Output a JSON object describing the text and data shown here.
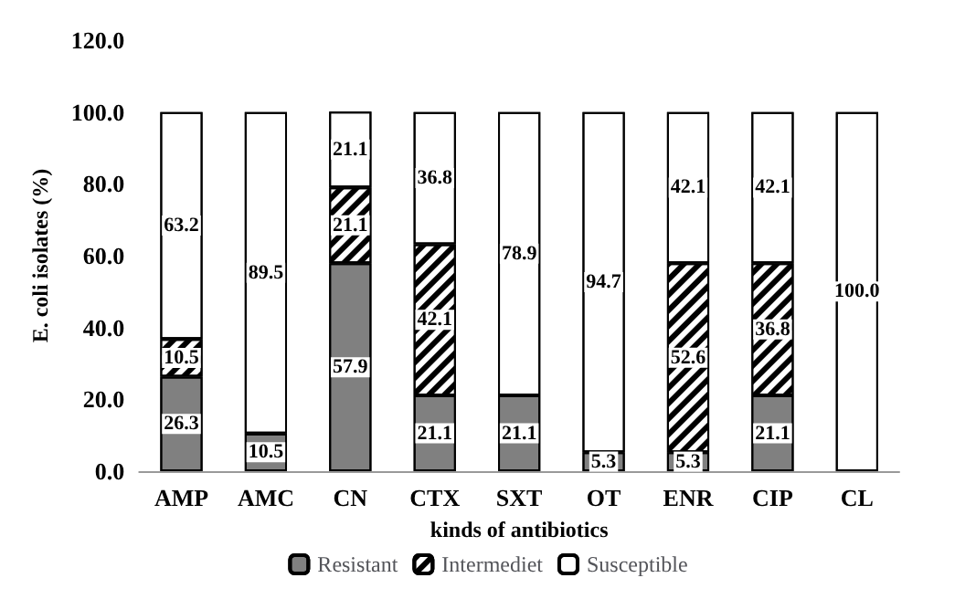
{
  "chart_data": {
    "type": "bar",
    "stacked": true,
    "xlabel": "kinds of antibiotics",
    "ylabel": "E. coli isolates (%)",
    "categories": [
      "AMP",
      "AMC",
      "CN",
      "CTX",
      "SXT",
      "OT",
      "ENR",
      "CIP",
      "CL"
    ],
    "ylim": [
      0,
      120
    ],
    "yticks": [
      {
        "value": 0,
        "label": "0.0"
      },
      {
        "value": 20,
        "label": "20.0"
      },
      {
        "value": 40,
        "label": "40.0"
      },
      {
        "value": 60,
        "label": "60.0"
      },
      {
        "value": 80,
        "label": "80.0"
      },
      {
        "value": 100,
        "label": "100.0"
      },
      {
        "value": 120,
        "label": "120.0"
      }
    ],
    "grid": false,
    "legend": "bottom",
    "series": [
      {
        "name": "Resistant",
        "color": "#808080",
        "values": [
          26.3,
          10.5,
          57.9,
          21.1,
          21.1,
          5.3,
          5.3,
          21.1,
          0
        ],
        "value_labels": [
          "26.3",
          "10.5",
          "57.9",
          "21.1",
          "21.1",
          "5.3",
          "5.3",
          "21.1",
          null
        ]
      },
      {
        "name": "Intermediet",
        "color": "#ffffff",
        "values": [
          10.5,
          0,
          21.1,
          42.1,
          0,
          0,
          52.6,
          36.8,
          0
        ],
        "value_labels": [
          "10.5",
          null,
          "21.1",
          "42.1",
          null,
          null,
          "52.6",
          "36.8",
          null
        ]
      },
      {
        "name": "Susceptible",
        "color": "#ffffff",
        "values": [
          63.2,
          89.5,
          21.1,
          36.8,
          78.9,
          94.7,
          42.1,
          42.1,
          100
        ],
        "value_labels": [
          "63.2",
          "89.5",
          "21.1",
          "36.8",
          "78.9",
          "94.7",
          "42.1",
          "42.1",
          "100.0"
        ]
      }
    ]
  }
}
